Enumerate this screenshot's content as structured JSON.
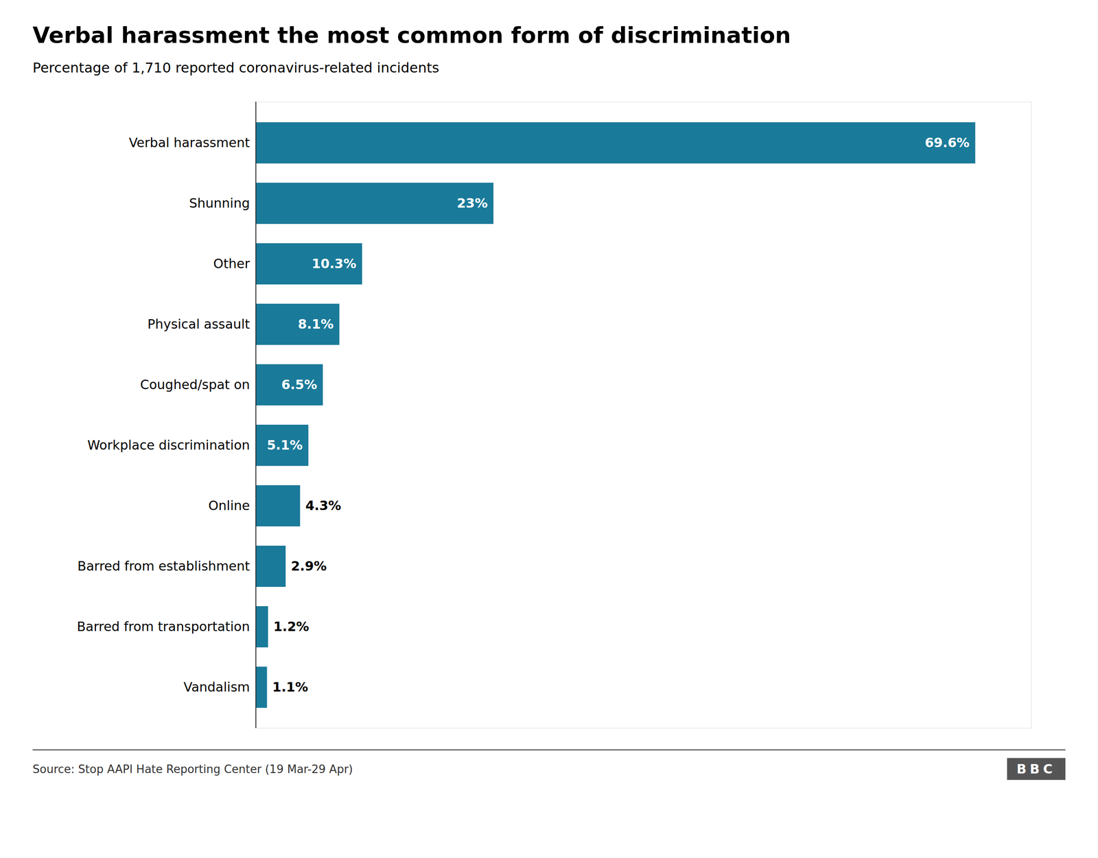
{
  "chart_data": {
    "type": "bar",
    "orientation": "horizontal",
    "title": "Verbal harassment the most common form of discrimination",
    "subtitle": "Percentage of 1,710 reported coronavirus-related incidents",
    "caption": "Source: Stop AAPI Hate Reporting Center (19 Mar-29 Apr)",
    "annotations": [
      "BBC"
    ],
    "categories": [
      "Verbal harassment",
      "Shunning",
      "Other",
      "Physical assault",
      "Coughed/spat on",
      "Workplace discrimination",
      "Online",
      "Barred from establishment",
      "Barred from transportation",
      "Vandalism"
    ],
    "values": [
      69.6,
      23.0,
      10.3,
      8.1,
      6.5,
      5.1,
      4.3,
      2.9,
      1.2,
      1.1
    ],
    "value_labels": [
      "69.6%",
      "23%",
      "10.3%",
      "8.1%",
      "6.5%",
      "5.1%",
      "4.3%",
      "2.9%",
      "1.2%",
      "1.1%"
    ],
    "color": "#1a7a99",
    "xlim": [
      0,
      75
    ],
    "data_labels": true,
    "tick_labels": "y",
    "grid": false
  }
}
